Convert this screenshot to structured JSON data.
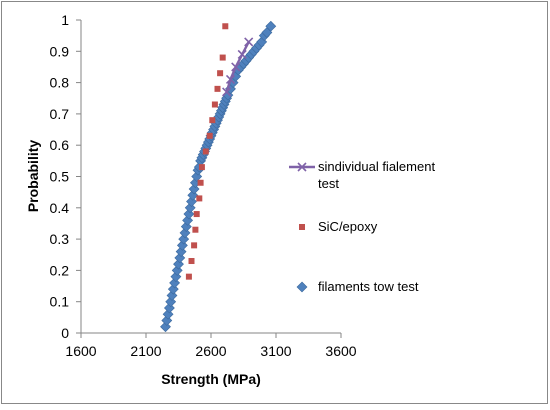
{
  "chart_data": {
    "type": "scatter",
    "title": "",
    "xlabel": "Strength (MPa)",
    "ylabel": "Probability",
    "xlim": [
      1600,
      3600
    ],
    "ylim": [
      0,
      1
    ],
    "xticks": [
      1600,
      2100,
      2600,
      3100,
      3600
    ],
    "yticks": [
      0,
      0.1,
      0.2,
      0.3,
      0.4,
      0.5,
      0.6,
      0.7,
      0.8,
      0.9,
      1
    ],
    "grid": false,
    "legend_position": "right",
    "series": [
      {
        "name": "sindividual fialement test",
        "marker": "x",
        "color": "#7f62a8",
        "x": [
          2720,
          2750,
          2790,
          2840,
          2890
        ],
        "y": [
          0.77,
          0.81,
          0.85,
          0.89,
          0.93
        ]
      },
      {
        "name": "SiC/epoxy",
        "marker": "square",
        "color": "#c0504d",
        "x": [
          2430,
          2450,
          2470,
          2480,
          2490,
          2510,
          2520,
          2530,
          2560,
          2590,
          2610,
          2630,
          2650,
          2670,
          2690,
          2710
        ],
        "y": [
          0.18,
          0.23,
          0.28,
          0.33,
          0.38,
          0.43,
          0.48,
          0.53,
          0.58,
          0.63,
          0.68,
          0.73,
          0.78,
          0.83,
          0.88,
          0.98
        ]
      },
      {
        "name": "filaments tow test",
        "marker": "diamond",
        "color": "#4f81bd",
        "x": [
          2250,
          2260,
          2270,
          2280,
          2290,
          2300,
          2310,
          2320,
          2330,
          2340,
          2350,
          2360,
          2370,
          2380,
          2390,
          2400,
          2410,
          2420,
          2430,
          2440,
          2450,
          2460,
          2470,
          2480,
          2490,
          2500,
          2510,
          2520,
          2530,
          2540,
          2550,
          2560,
          2570,
          2580,
          2590,
          2600,
          2610,
          2620,
          2630,
          2640,
          2650,
          2660,
          2670,
          2680,
          2690,
          2700,
          2710,
          2720,
          2730,
          2750,
          2770,
          2790,
          2810,
          2830,
          2850,
          2870,
          2890,
          2910,
          2930,
          2950,
          2970,
          2990,
          3010,
          3030,
          3060
        ],
        "y": [
          0.02,
          0.04,
          0.06,
          0.08,
          0.1,
          0.12,
          0.14,
          0.16,
          0.18,
          0.2,
          0.22,
          0.24,
          0.26,
          0.28,
          0.3,
          0.32,
          0.34,
          0.36,
          0.38,
          0.4,
          0.42,
          0.44,
          0.46,
          0.48,
          0.5,
          0.52,
          0.53,
          0.55,
          0.56,
          0.57,
          0.58,
          0.59,
          0.6,
          0.61,
          0.62,
          0.63,
          0.64,
          0.65,
          0.66,
          0.67,
          0.68,
          0.69,
          0.7,
          0.71,
          0.72,
          0.73,
          0.74,
          0.75,
          0.76,
          0.78,
          0.8,
          0.82,
          0.84,
          0.85,
          0.86,
          0.87,
          0.88,
          0.89,
          0.9,
          0.91,
          0.92,
          0.93,
          0.95,
          0.96,
          0.98
        ]
      }
    ]
  }
}
